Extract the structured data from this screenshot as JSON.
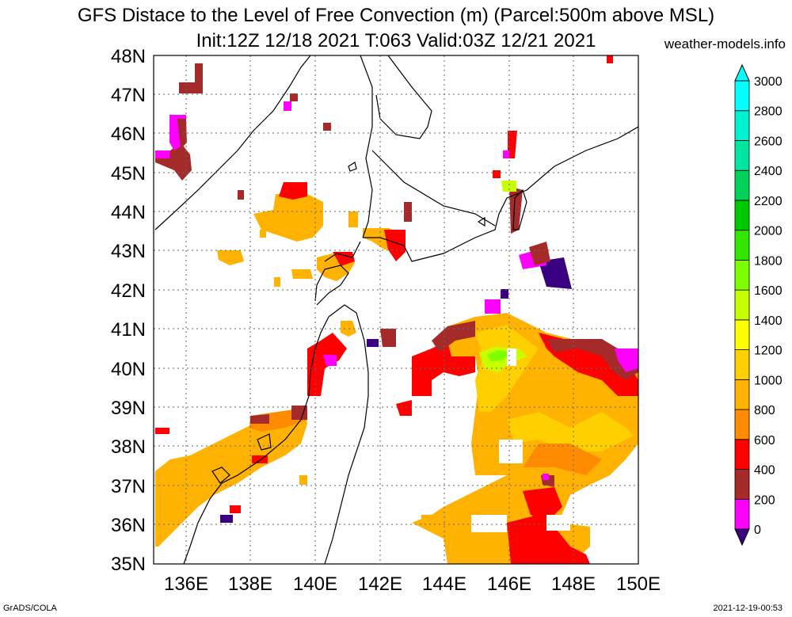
{
  "title_line1": "GFS Distace to the Level of Free Convection (m) (Parcel:500m above MSL)",
  "title_line2": "Init:12Z 12/18 2021 T:063 Valid:03Z 12/21 2021",
  "site": "weather-models.info",
  "footer_left": "GrADS/COLA",
  "footer_right": "2021-12-19-00:53",
  "lat_labels": [
    "48N",
    "47N",
    "46N",
    "45N",
    "44N",
    "43N",
    "42N",
    "41N",
    "40N",
    "39N",
    "38N",
    "37N",
    "36N",
    "35N"
  ],
  "lon_labels": [
    "136E",
    "138E",
    "140E",
    "142E",
    "144E",
    "146E",
    "148E",
    "150E"
  ],
  "colorbar": {
    "labels": [
      "0",
      "200",
      "400",
      "600",
      "800",
      "1000",
      "1200",
      "1400",
      "1600",
      "1800",
      "2000",
      "2200",
      "2400",
      "2600",
      "2800",
      "3000"
    ],
    "colors": [
      "#3a0082",
      "#ff00ff",
      "#a52a2a",
      "#ff0000",
      "#ff8c00",
      "#ffb300",
      "#ffd000",
      "#ffff00",
      "#c8ff00",
      "#7dff00",
      "#32e600",
      "#00c800",
      "#00d25a",
      "#00e6a0",
      "#00f0d2",
      "#00ffff"
    ]
  }
}
